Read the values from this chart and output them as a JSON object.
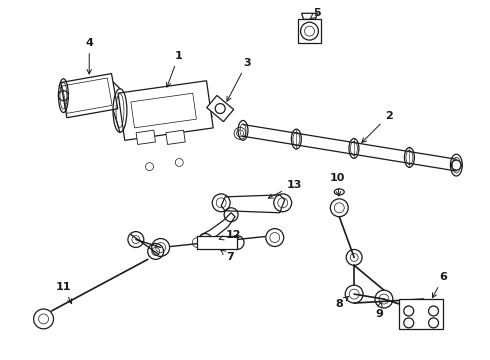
{
  "background_color": "#ffffff",
  "line_color": "#1a1a1a",
  "fig_width": 4.9,
  "fig_height": 3.6,
  "dpi": 100,
  "label_fontsize": 8,
  "lw": 0.9
}
